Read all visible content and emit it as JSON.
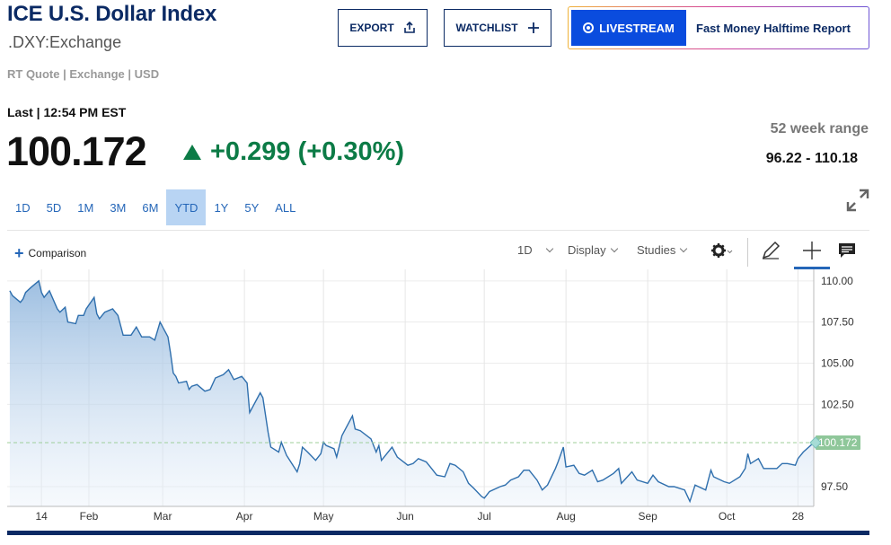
{
  "header": {
    "title": "ICE U.S. Dollar Index",
    "symbol": ".DXY:Exchange",
    "quote_meta": "RT Quote | Exchange | USD"
  },
  "actions": {
    "export_label": "EXPORT",
    "watchlist_label": "WATCHLIST",
    "livestream_label": "LIVESTREAM",
    "livestream_show": "Fast Money Halftime Report"
  },
  "quote": {
    "last_label": "Last | 12:54 PM EST",
    "price": "100.172",
    "change": "+0.299 (+0.30%)",
    "range_label": "52 week range",
    "range_value": "96.22 - 110.18"
  },
  "periods": [
    {
      "label": "1D",
      "active": false
    },
    {
      "label": "5D",
      "active": false
    },
    {
      "label": "1M",
      "active": false
    },
    {
      "label": "3M",
      "active": false
    },
    {
      "label": "6M",
      "active": false
    },
    {
      "label": "YTD",
      "active": true
    },
    {
      "label": "1Y",
      "active": false
    },
    {
      "label": "5Y",
      "active": false
    },
    {
      "label": "ALL",
      "active": false
    }
  ],
  "toolbar": {
    "comparison_label": "Comparison",
    "interval_label": "1D",
    "display_label": "Display",
    "studies_label": "Studies"
  },
  "icons": {
    "export": "upload-icon",
    "watchlist": "plus-icon",
    "livestream": "live-dot-icon",
    "expand": "expand-arrows-icon",
    "settings": "gear-icon",
    "draw": "pencil-icon",
    "crosshair": "crosshair-icon",
    "comment": "comment-icon"
  },
  "colors": {
    "brand_navy": "#0b2a64",
    "link_blue": "#2466b8",
    "positive": "#0c7b46",
    "live_blue": "#0a4cde",
    "line": "#2f6fad",
    "price_badge": "#8fc79a"
  },
  "chart_data": {
    "type": "area",
    "title": "",
    "xlabel": "",
    "ylabel": "",
    "ylim": [
      96.3,
      110.7
    ],
    "yticks": [
      110.0,
      107.5,
      105.0,
      102.5,
      97.5
    ],
    "ytick_labels": [
      "110.00",
      "107.50",
      "105.00",
      "102.50",
      "97.50"
    ],
    "xticks": [
      "14",
      "Feb",
      "Mar",
      "Apr",
      "May",
      "Jun",
      "Jul",
      "Aug",
      "Sep",
      "Oct",
      "28"
    ],
    "xtick_dates": [
      "2025-01-14",
      "2025-02-01",
      "2025-03-01",
      "2025-04-01",
      "2025-05-01",
      "2025-06-01",
      "2025-07-01",
      "2025-08-01",
      "2025-09-01",
      "2025-10-01",
      "2025-10-28"
    ],
    "grid": true,
    "last_value": 100.172,
    "last_value_label": "100.172",
    "series": [
      {
        "values": [
          [
            "2025-01-02",
            109.4
          ],
          [
            "2025-01-03",
            109.1
          ],
          [
            "2025-01-06",
            108.7
          ],
          [
            "2025-01-07",
            108.9
          ],
          [
            "2025-01-08",
            109.3
          ],
          [
            "2025-01-10",
            109.6
          ],
          [
            "2025-01-13",
            110.0
          ],
          [
            "2025-01-14",
            109.3
          ],
          [
            "2025-01-15",
            109.0
          ],
          [
            "2025-01-17",
            109.4
          ],
          [
            "2025-01-20",
            108.3
          ],
          [
            "2025-01-21",
            108.1
          ],
          [
            "2025-01-23",
            108.4
          ],
          [
            "2025-01-24",
            107.5
          ],
          [
            "2025-01-27",
            107.4
          ],
          [
            "2025-01-28",
            107.9
          ],
          [
            "2025-01-30",
            107.9
          ],
          [
            "2025-01-31",
            108.3
          ],
          [
            "2025-02-03",
            109.0
          ],
          [
            "2025-02-04",
            108.0
          ],
          [
            "2025-02-05",
            107.7
          ],
          [
            "2025-02-07",
            108.1
          ],
          [
            "2025-02-10",
            108.3
          ],
          [
            "2025-02-12",
            107.9
          ],
          [
            "2025-02-13",
            107.3
          ],
          [
            "2025-02-14",
            106.7
          ],
          [
            "2025-02-17",
            106.7
          ],
          [
            "2025-02-19",
            107.2
          ],
          [
            "2025-02-21",
            106.6
          ],
          [
            "2025-02-24",
            106.6
          ],
          [
            "2025-02-26",
            106.4
          ],
          [
            "2025-02-28",
            107.5
          ],
          [
            "2025-03-03",
            106.6
          ],
          [
            "2025-03-04",
            105.6
          ],
          [
            "2025-03-05",
            104.4
          ],
          [
            "2025-03-06",
            104.2
          ],
          [
            "2025-03-07",
            103.8
          ],
          [
            "2025-03-10",
            103.9
          ],
          [
            "2025-03-11",
            103.4
          ],
          [
            "2025-03-12",
            103.6
          ],
          [
            "2025-03-14",
            103.7
          ],
          [
            "2025-03-17",
            103.3
          ],
          [
            "2025-03-19",
            103.4
          ],
          [
            "2025-03-21",
            104.1
          ],
          [
            "2025-03-24",
            104.3
          ],
          [
            "2025-03-26",
            104.6
          ],
          [
            "2025-03-28",
            104.0
          ],
          [
            "2025-03-31",
            104.2
          ],
          [
            "2025-04-02",
            103.8
          ],
          [
            "2025-04-03",
            102.0
          ],
          [
            "2025-04-07",
            103.2
          ],
          [
            "2025-04-08",
            102.9
          ],
          [
            "2025-04-10",
            100.8
          ],
          [
            "2025-04-11",
            99.9
          ],
          [
            "2025-04-14",
            99.6
          ],
          [
            "2025-04-15",
            100.2
          ],
          [
            "2025-04-17",
            99.4
          ],
          [
            "2025-04-21",
            98.4
          ],
          [
            "2025-04-22",
            98.9
          ],
          [
            "2025-04-23",
            99.9
          ],
          [
            "2025-04-25",
            99.6
          ],
          [
            "2025-04-28",
            99.1
          ],
          [
            "2025-04-30",
            99.5
          ],
          [
            "2025-05-01",
            100.2
          ],
          [
            "2025-05-02",
            100.0
          ],
          [
            "2025-05-05",
            99.8
          ],
          [
            "2025-05-06",
            99.3
          ],
          [
            "2025-05-08",
            100.6
          ],
          [
            "2025-05-12",
            101.8
          ],
          [
            "2025-05-13",
            101.0
          ],
          [
            "2025-05-15",
            100.9
          ],
          [
            "2025-05-19",
            100.4
          ],
          [
            "2025-05-21",
            99.6
          ],
          [
            "2025-05-22",
            100.0
          ],
          [
            "2025-05-23",
            99.1
          ],
          [
            "2025-05-27",
            99.9
          ],
          [
            "2025-05-29",
            99.3
          ],
          [
            "2025-06-02",
            98.8
          ],
          [
            "2025-06-04",
            98.9
          ],
          [
            "2025-06-06",
            99.2
          ],
          [
            "2025-06-09",
            99.0
          ],
          [
            "2025-06-11",
            98.6
          ],
          [
            "2025-06-13",
            98.2
          ],
          [
            "2025-06-16",
            98.1
          ],
          [
            "2025-06-18",
            98.9
          ],
          [
            "2025-06-20",
            98.8
          ],
          [
            "2025-06-23",
            98.4
          ],
          [
            "2025-06-25",
            97.7
          ],
          [
            "2025-06-27",
            97.4
          ],
          [
            "2025-06-30",
            96.9
          ],
          [
            "2025-07-01",
            96.8
          ],
          [
            "2025-07-03",
            97.2
          ],
          [
            "2025-07-07",
            97.5
          ],
          [
            "2025-07-09",
            97.6
          ],
          [
            "2025-07-11",
            97.9
          ],
          [
            "2025-07-14",
            98.1
          ],
          [
            "2025-07-16",
            98.5
          ],
          [
            "2025-07-18",
            98.5
          ],
          [
            "2025-07-21",
            97.9
          ],
          [
            "2025-07-23",
            97.3
          ],
          [
            "2025-07-25",
            97.6
          ],
          [
            "2025-07-28",
            98.6
          ],
          [
            "2025-07-29",
            99.0
          ],
          [
            "2025-07-31",
            99.9
          ],
          [
            "2025-08-01",
            98.7
          ],
          [
            "2025-08-04",
            98.8
          ],
          [
            "2025-08-06",
            98.3
          ],
          [
            "2025-08-08",
            98.2
          ],
          [
            "2025-08-11",
            98.5
          ],
          [
            "2025-08-13",
            97.8
          ],
          [
            "2025-08-15",
            97.9
          ],
          [
            "2025-08-19",
            98.3
          ],
          [
            "2025-08-21",
            98.6
          ],
          [
            "2025-08-22",
            97.7
          ],
          [
            "2025-08-26",
            98.4
          ],
          [
            "2025-08-28",
            97.9
          ],
          [
            "2025-09-01",
            97.7
          ],
          [
            "2025-09-03",
            98.2
          ],
          [
            "2025-09-05",
            97.8
          ],
          [
            "2025-09-09",
            97.5
          ],
          [
            "2025-09-11",
            97.5
          ],
          [
            "2025-09-15",
            97.3
          ],
          [
            "2025-09-17",
            96.6
          ],
          [
            "2025-09-19",
            97.6
          ],
          [
            "2025-09-23",
            97.3
          ],
          [
            "2025-09-25",
            98.5
          ],
          [
            "2025-09-26",
            98.1
          ],
          [
            "2025-09-30",
            97.8
          ],
          [
            "2025-10-02",
            97.7
          ],
          [
            "2025-10-06",
            98.1
          ],
          [
            "2025-10-08",
            98.6
          ],
          [
            "2025-10-09",
            99.5
          ],
          [
            "2025-10-10",
            98.9
          ],
          [
            "2025-10-13",
            99.2
          ],
          [
            "2025-10-15",
            98.6
          ],
          [
            "2025-10-17",
            98.6
          ],
          [
            "2025-10-20",
            98.6
          ],
          [
            "2025-10-22",
            98.9
          ],
          [
            "2025-10-24",
            98.9
          ],
          [
            "2025-10-27",
            98.8
          ],
          [
            "2025-10-28",
            99.2
          ],
          [
            "2025-10-30",
            99.6
          ],
          [
            "2025-11-03",
            100.17
          ]
        ]
      }
    ]
  }
}
